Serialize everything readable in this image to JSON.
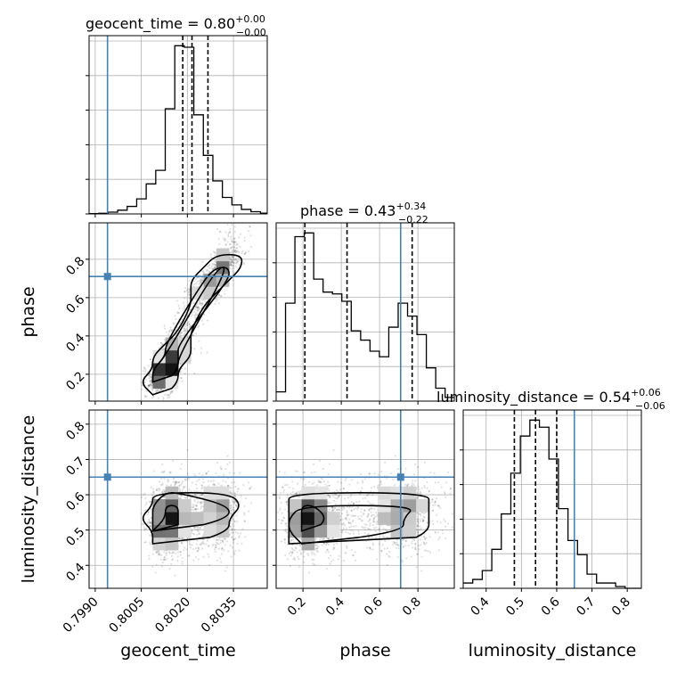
{
  "chart_data": {
    "type": "corner",
    "params": [
      {
        "name": "geocent_time",
        "xlabel": "geocent_time",
        "title_main": "geocent_time = 0.80",
        "title_sup": "+0.00",
        "title_sub": "−0.00",
        "ticks": [
          0.799,
          0.8005,
          0.802,
          0.8035
        ],
        "tick_labels": [
          "0.7990",
          "0.8005",
          "0.8020",
          "0.8035"
        ],
        "range": [
          0.7988,
          0.8046
        ],
        "truth": 0.7994,
        "quantiles": [
          0.80185,
          0.80215,
          0.80267
        ],
        "hist": {
          "edges": [
            0.7988,
            0.79911,
            0.79942,
            0.79973,
            0.80004,
            0.80035,
            0.80066,
            0.80097,
            0.80128,
            0.80159,
            0.8019,
            0.80221,
            0.80252,
            0.80283,
            0.80314,
            0.80345,
            0.80376,
            0.80407,
            0.80438,
            0.8046
          ],
          "counts": [
            0.2,
            0.4,
            1.2,
            2.5,
            5.0,
            10.0,
            20.0,
            29.0,
            70.0,
            112.0,
            111.0,
            66.0,
            39.0,
            22.0,
            11.0,
            6.0,
            3.0,
            1.5,
            0.5
          ]
        }
      },
      {
        "name": "phase",
        "xlabel": "phase",
        "ylabel": "phase",
        "title_main": "phase = 0.43",
        "title_sup": "+0.34",
        "title_sub": "−0.22",
        "ticks": [
          0.2,
          0.4,
          0.6,
          0.8
        ],
        "tick_labels": [
          "0.2",
          "0.4",
          "0.6",
          "0.8"
        ],
        "range": [
          0.06,
          0.99
        ],
        "truth": 0.71,
        "quantiles": [
          0.21,
          0.43,
          0.77
        ],
        "hist": {
          "edges": [
            0.06,
            0.109,
            0.158,
            0.207,
            0.256,
            0.305,
            0.354,
            0.403,
            0.452,
            0.501,
            0.55,
            0.599,
            0.648,
            0.697,
            0.746,
            0.795,
            0.844,
            0.893,
            0.942,
            0.99
          ],
          "counts": [
            0.05,
            0.53,
            0.89,
            0.91,
            0.66,
            0.59,
            0.58,
            0.54,
            0.38,
            0.33,
            0.27,
            0.24,
            0.4,
            0.53,
            0.46,
            0.36,
            0.18,
            0.07,
            0.02
          ]
        }
      },
      {
        "name": "luminosity_distance",
        "xlabel": "luminosity_distance",
        "ylabel": "luminosity_distance",
        "title_main": "luminosity_distance = 0.54",
        "title_sup": "+0.06",
        "title_sub": "−0.06",
        "ticks": [
          0.4,
          0.5,
          0.6,
          0.7,
          0.8
        ],
        "tick_labels": [
          "0.4",
          "0.5",
          "0.6",
          "0.7",
          "0.8"
        ],
        "range": [
          0.335,
          0.84
        ],
        "truth": 0.65,
        "quantiles": [
          0.48,
          0.54,
          0.6
        ],
        "hist": {
          "edges": [
            0.335,
            0.362,
            0.389,
            0.416,
            0.443,
            0.47,
            0.497,
            0.524,
            0.551,
            0.578,
            0.605,
            0.632,
            0.659,
            0.686,
            0.713,
            0.74,
            0.767,
            0.794,
            0.821,
            0.84
          ],
          "counts": [
            3,
            5,
            10,
            22,
            42,
            65,
            86,
            95,
            91,
            73,
            45,
            27,
            19,
            8,
            3,
            3,
            1,
            0,
            0
          ]
        }
      }
    ],
    "grid": true,
    "colors": {
      "truth": "#4682b4",
      "hist": "#000000",
      "grid": "#b0b0b0"
    }
  }
}
